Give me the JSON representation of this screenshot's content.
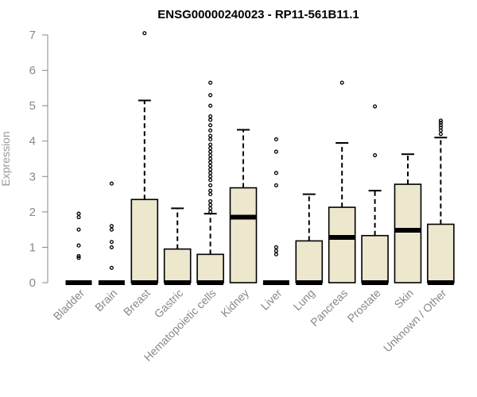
{
  "chart_data": {
    "type": "box",
    "title": "ENSG00000240023 - RP11-561B11.1",
    "ylabel": "Expression",
    "ylim": [
      0,
      7
    ],
    "yticks": [
      "0",
      "1",
      "2",
      "3",
      "4",
      "5",
      "6",
      "7"
    ],
    "box_color": "#ede7ce",
    "categories": [
      "Bladder",
      "Brain",
      "Breast",
      "Gastric",
      "Hematopoietic cells",
      "Kidney",
      "Liver",
      "Lung",
      "Pancreas",
      "Prostate",
      "Skin",
      "Unknown / Other"
    ],
    "boxes": [
      {
        "q1": 0,
        "median": 0,
        "q3": 0,
        "whisker_low": 0,
        "whisker_high": 0,
        "outliers": [
          0.7,
          0.75,
          1.05,
          1.5,
          1.85,
          1.95
        ]
      },
      {
        "q1": 0,
        "median": 0,
        "q3": 0,
        "whisker_low": 0,
        "whisker_high": 0,
        "outliers": [
          0.42,
          1.0,
          1.15,
          1.5,
          1.6,
          2.8
        ]
      },
      {
        "q1": 0,
        "median": 0,
        "q3": 2.35,
        "whisker_low": 0,
        "whisker_high": 5.15,
        "outliers": [
          7.05
        ]
      },
      {
        "q1": 0,
        "median": 0,
        "q3": 0.95,
        "whisker_low": 0,
        "whisker_high": 2.1,
        "outliers": []
      },
      {
        "q1": 0,
        "median": 0,
        "q3": 0.8,
        "whisker_low": 0,
        "whisker_high": 1.95,
        "outliers": [
          2.0,
          2.1,
          2.2,
          2.3,
          2.5,
          2.6,
          2.75,
          2.9,
          3.0,
          3.1,
          3.2,
          3.3,
          3.4,
          3.5,
          3.6,
          3.7,
          3.8,
          3.9,
          4.05,
          4.15,
          4.3,
          4.45,
          4.6,
          4.7,
          5.0,
          5.3,
          5.65
        ]
      },
      {
        "q1": 0,
        "median": 1.85,
        "q3": 2.68,
        "whisker_low": 0,
        "whisker_high": 4.32,
        "outliers": []
      },
      {
        "q1": 0,
        "median": 0,
        "q3": 0,
        "whisker_low": 0,
        "whisker_high": 0,
        "outliers": [
          0.8,
          0.9,
          1.0,
          2.75,
          3.1,
          3.7,
          4.05
        ]
      },
      {
        "q1": 0,
        "median": 0,
        "q3": 1.18,
        "whisker_low": 0,
        "whisker_high": 2.5,
        "outliers": []
      },
      {
        "q1": 0,
        "median": 1.28,
        "q3": 2.13,
        "whisker_low": 0,
        "whisker_high": 3.95,
        "outliers": [
          5.65
        ]
      },
      {
        "q1": 0,
        "median": 0,
        "q3": 1.33,
        "whisker_low": 0,
        "whisker_high": 2.6,
        "outliers": [
          3.6,
          4.98
        ]
      },
      {
        "q1": 0,
        "median": 1.48,
        "q3": 2.78,
        "whisker_low": 0,
        "whisker_high": 3.63,
        "outliers": []
      },
      {
        "q1": 0,
        "median": 0,
        "q3": 1.65,
        "whisker_low": 0,
        "whisker_high": 4.1,
        "outliers": [
          4.2,
          4.3,
          4.38,
          4.45,
          4.52,
          4.58
        ]
      }
    ]
  }
}
